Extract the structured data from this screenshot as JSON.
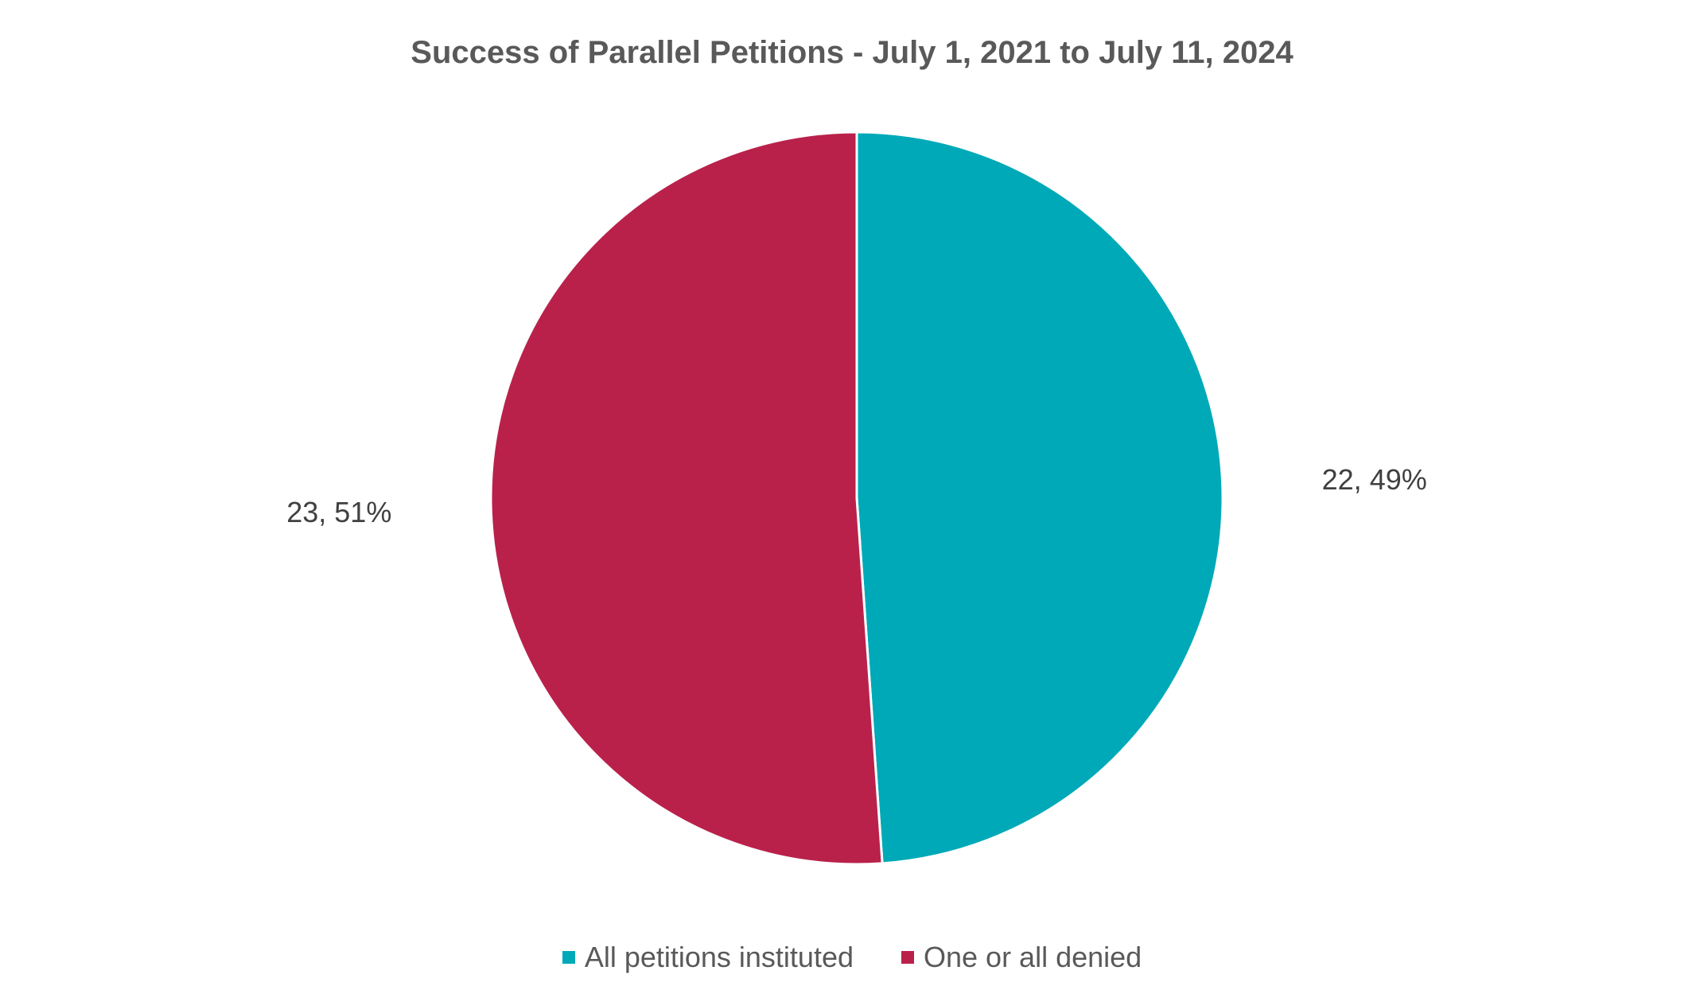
{
  "chart_data": {
    "type": "pie",
    "title": "Success of Parallel Petitions - July 1, 2021 to July 11, 2024",
    "slices": [
      {
        "label": "All petitions instituted",
        "value": 22,
        "percent": 49,
        "data_label": "22, 49%",
        "color": "#00A9B7"
      },
      {
        "label": "One or all denied",
        "value": 23,
        "percent": 51,
        "data_label": "23, 51%",
        "color": "#B9214B"
      }
    ],
    "legend_position": "bottom"
  }
}
